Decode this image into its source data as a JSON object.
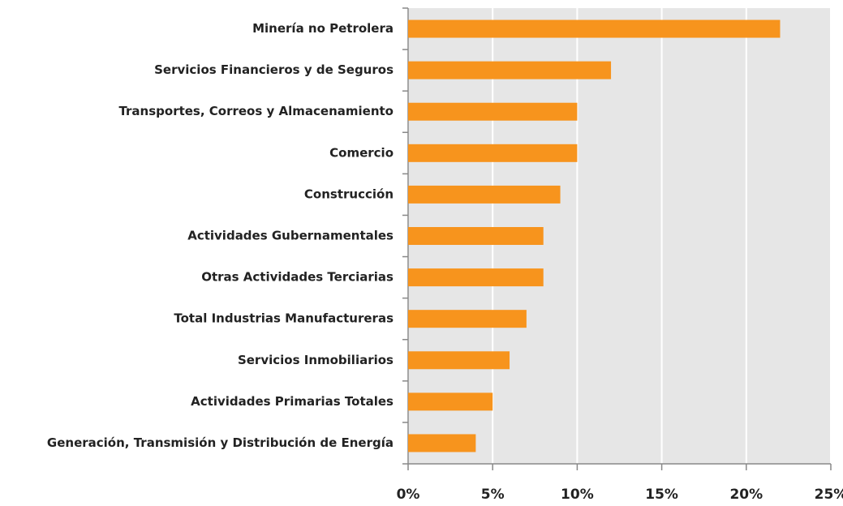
{
  "chart_data": {
    "type": "barh",
    "categories": [
      "Minería no Petrolera",
      "Servicios Financieros y de Seguros",
      "Transportes, Correos y Almacenamiento",
      "Comercio",
      "Construcción",
      "Actividades Gubernamentales",
      "Otras Actividades Terciarias",
      "Total Industrias Manufactureras",
      "Servicios Inmobiliarios",
      "Actividades Primarias Totales",
      "Generación, Transmisión y Distribución de Energía"
    ],
    "values": [
      22,
      12,
      10,
      10,
      9,
      8,
      8,
      7,
      6,
      5,
      4
    ],
    "color": "#f7941d",
    "xlim": [
      0,
      25
    ],
    "xticks": [
      {
        "value": 0,
        "label": "0%"
      },
      {
        "value": 5,
        "label": "5%"
      },
      {
        "value": 10,
        "label": "10%"
      },
      {
        "value": 15,
        "label": "15%"
      },
      {
        "value": 20,
        "label": "20%"
      },
      {
        "value": 25,
        "label": "25%"
      }
    ],
    "grid": true
  }
}
